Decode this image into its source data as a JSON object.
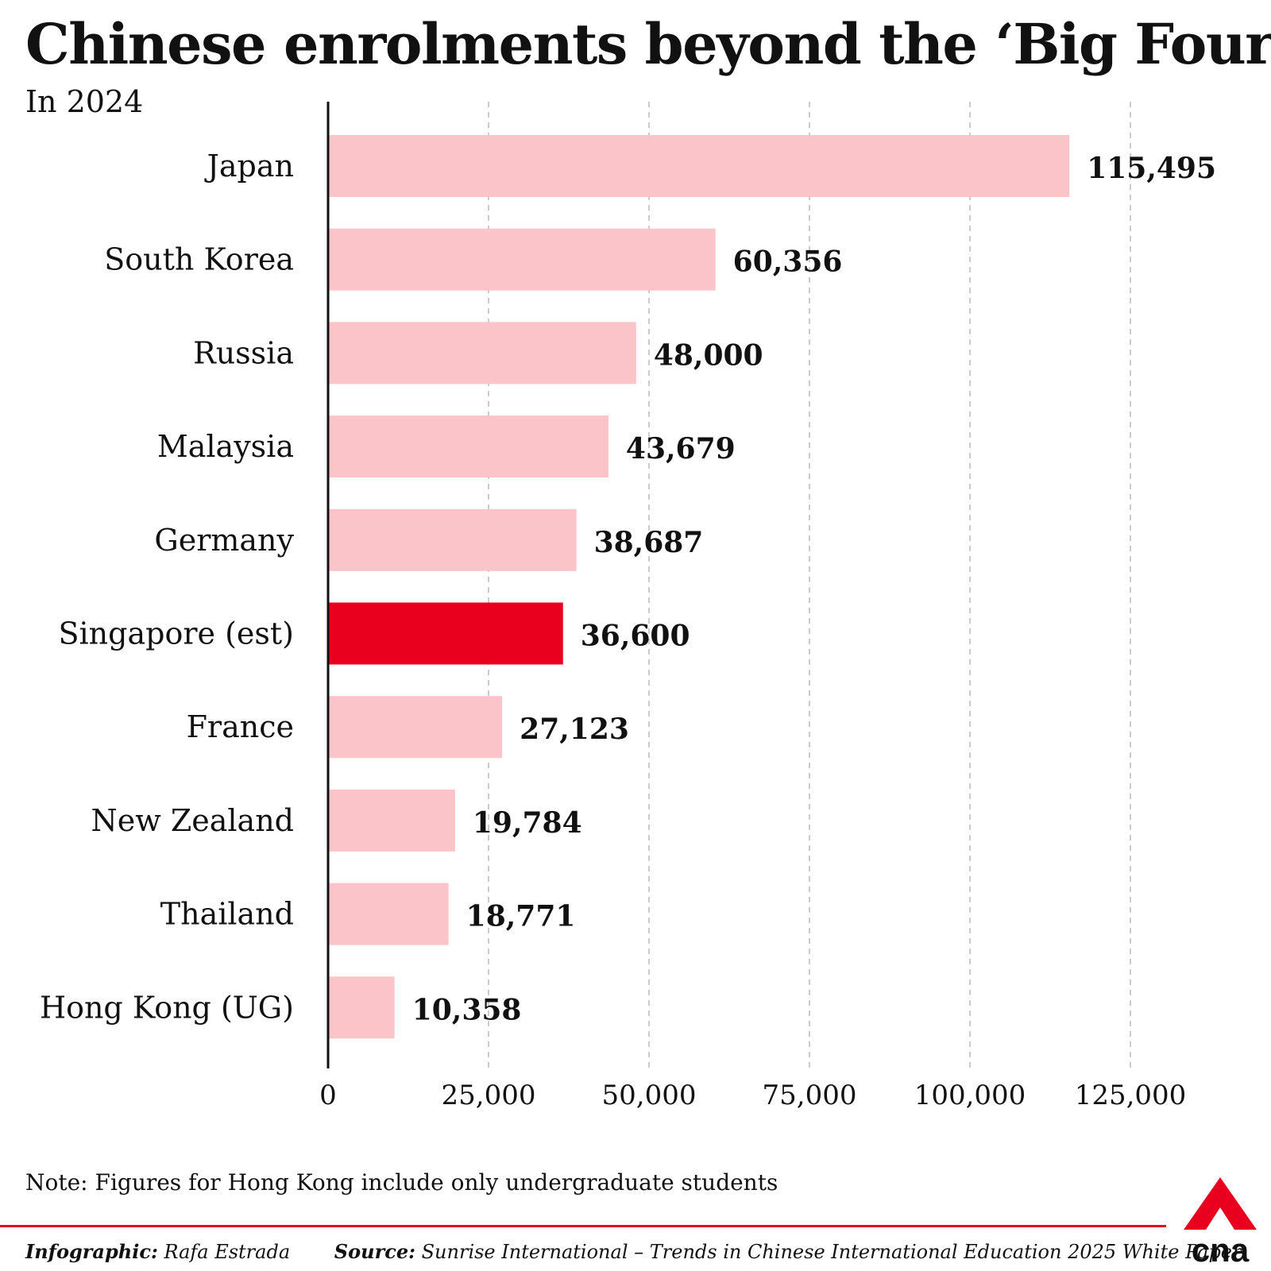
{
  "title": "Chinese enrolments beyond the ‘Big Four’",
  "subtitle": "In 2024",
  "note": "Note: Figures for Hong Kong include only undergraduate students",
  "footer": {
    "credit_label": "Infographic:",
    "credit_name": "Rafa Estrada",
    "source_label": "Source:",
    "source_text": "Sunrise International – Trends in Chinese International Education 2025 White Paper"
  },
  "logo": {
    "text": "cna"
  },
  "colors": {
    "bar": "#fbc4c9",
    "highlight": "#e8001e",
    "grid": "#bbbbbb",
    "axis": "#111111",
    "accent": "#e8001e"
  },
  "chart_data": {
    "type": "bar",
    "orientation": "horizontal",
    "title": "Chinese enrolments beyond the ‘Big Four’",
    "subtitle": "In 2024",
    "xlabel": "",
    "ylabel": "",
    "xlim": [
      0,
      125000
    ],
    "grid": true,
    "xticks": [
      0,
      25000,
      50000,
      75000,
      100000,
      125000
    ],
    "xtick_labels": [
      "0",
      "25,000",
      "50,000",
      "75,000",
      "100,000",
      "125,000"
    ],
    "categories": [
      "Japan",
      "South Korea",
      "Russia",
      "Malaysia",
      "Germany",
      "Singapore (est)",
      "France",
      "New Zealand",
      "Thailand",
      "Hong Kong (UG)"
    ],
    "values": [
      115495,
      60356,
      48000,
      43679,
      38687,
      36600,
      27123,
      19784,
      18771,
      10358
    ],
    "value_labels": [
      "115,495",
      "60,356",
      "48,000",
      "43,679",
      "38,687",
      "36,600",
      "27,123",
      "19,784",
      "18,771",
      "10,358"
    ],
    "highlight": "Singapore (est)"
  }
}
